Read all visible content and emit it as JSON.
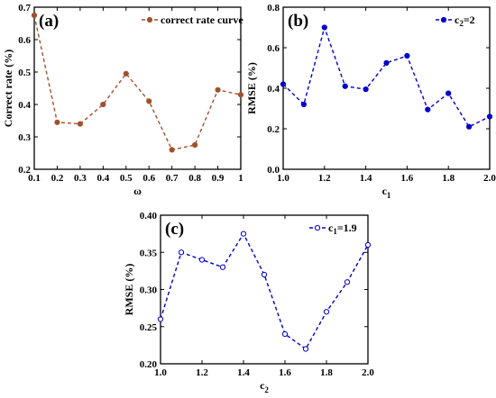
{
  "chart_data": [
    {
      "type": "line",
      "panel_label": "(a)",
      "xlabel": "ω",
      "ylabel": "Correct rate (%)",
      "x": [
        0.1,
        0.2,
        0.3,
        0.4,
        0.5,
        0.6,
        0.7,
        0.8,
        0.9,
        1.0
      ],
      "xlim": [
        0.1,
        1.0
      ],
      "ylim": [
        0.2,
        0.7
      ],
      "xticks": [
        "0.1",
        "0.2",
        "0.3",
        "0.4",
        "0.5",
        "0.6",
        "0.7",
        "0.8",
        "0.9",
        "1"
      ],
      "yticks": [
        "0.2",
        "0.3",
        "0.4",
        "0.5",
        "0.6",
        "0.7"
      ],
      "series": [
        {
          "name": "correct rate curve",
          "values": [
            0.675,
            0.345,
            0.34,
            0.4,
            0.495,
            0.41,
            0.26,
            0.275,
            0.445,
            0.43
          ],
          "color": "#a0522d",
          "marker": "circle-filled"
        }
      ],
      "legend": {
        "position": "top-right",
        "label": "correct rate curve"
      },
      "grid": false
    },
    {
      "type": "line",
      "panel_label": "(b)",
      "xlabel": "c",
      "xlabel_sub": "1",
      "ylabel": "RMSE (%)",
      "x": [
        1.0,
        1.1,
        1.2,
        1.3,
        1.4,
        1.5,
        1.6,
        1.7,
        1.8,
        1.9,
        2.0
      ],
      "xlim": [
        1.0,
        2.0
      ],
      "ylim": [
        0.0,
        0.8
      ],
      "xticks": [
        "1.0",
        "1.2",
        "1.4",
        "1.6",
        "1.8",
        "2.0"
      ],
      "yticks": [
        "0.0",
        "0.2",
        "0.4",
        "0.6",
        "0.8"
      ],
      "series": [
        {
          "name": "c2=2",
          "values": [
            0.42,
            0.32,
            0.7,
            0.41,
            0.395,
            0.525,
            0.56,
            0.295,
            0.375,
            0.21,
            0.26
          ],
          "color": "#0000cc",
          "marker": "circle-filled"
        }
      ],
      "legend": {
        "position": "top-right",
        "prefix": "c",
        "sub": "2",
        "suffix": "=2"
      },
      "grid": false
    },
    {
      "type": "line",
      "panel_label": "(c)",
      "xlabel": "c",
      "xlabel_sub": "2",
      "ylabel": "RMSE (%)",
      "x": [
        1.0,
        1.1,
        1.2,
        1.3,
        1.4,
        1.5,
        1.6,
        1.7,
        1.8,
        1.9,
        2.0
      ],
      "xlim": [
        1.0,
        2.0
      ],
      "ylim": [
        0.2,
        0.4
      ],
      "xticks": [
        "1.0",
        "1.2",
        "1.4",
        "1.6",
        "1.8",
        "2.0"
      ],
      "yticks": [
        "0.20",
        "0.25",
        "0.30",
        "0.35",
        "0.40"
      ],
      "series": [
        {
          "name": "c1=1.9",
          "values": [
            0.26,
            0.35,
            0.34,
            0.33,
            0.375,
            0.32,
            0.24,
            0.22,
            0.27,
            0.31,
            0.36
          ],
          "color": "#0000cc",
          "marker": "circle-open"
        }
      ],
      "legend": {
        "position": "top-right",
        "prefix": "c",
        "sub": "1",
        "suffix": "=1.9"
      },
      "grid": false
    }
  ]
}
